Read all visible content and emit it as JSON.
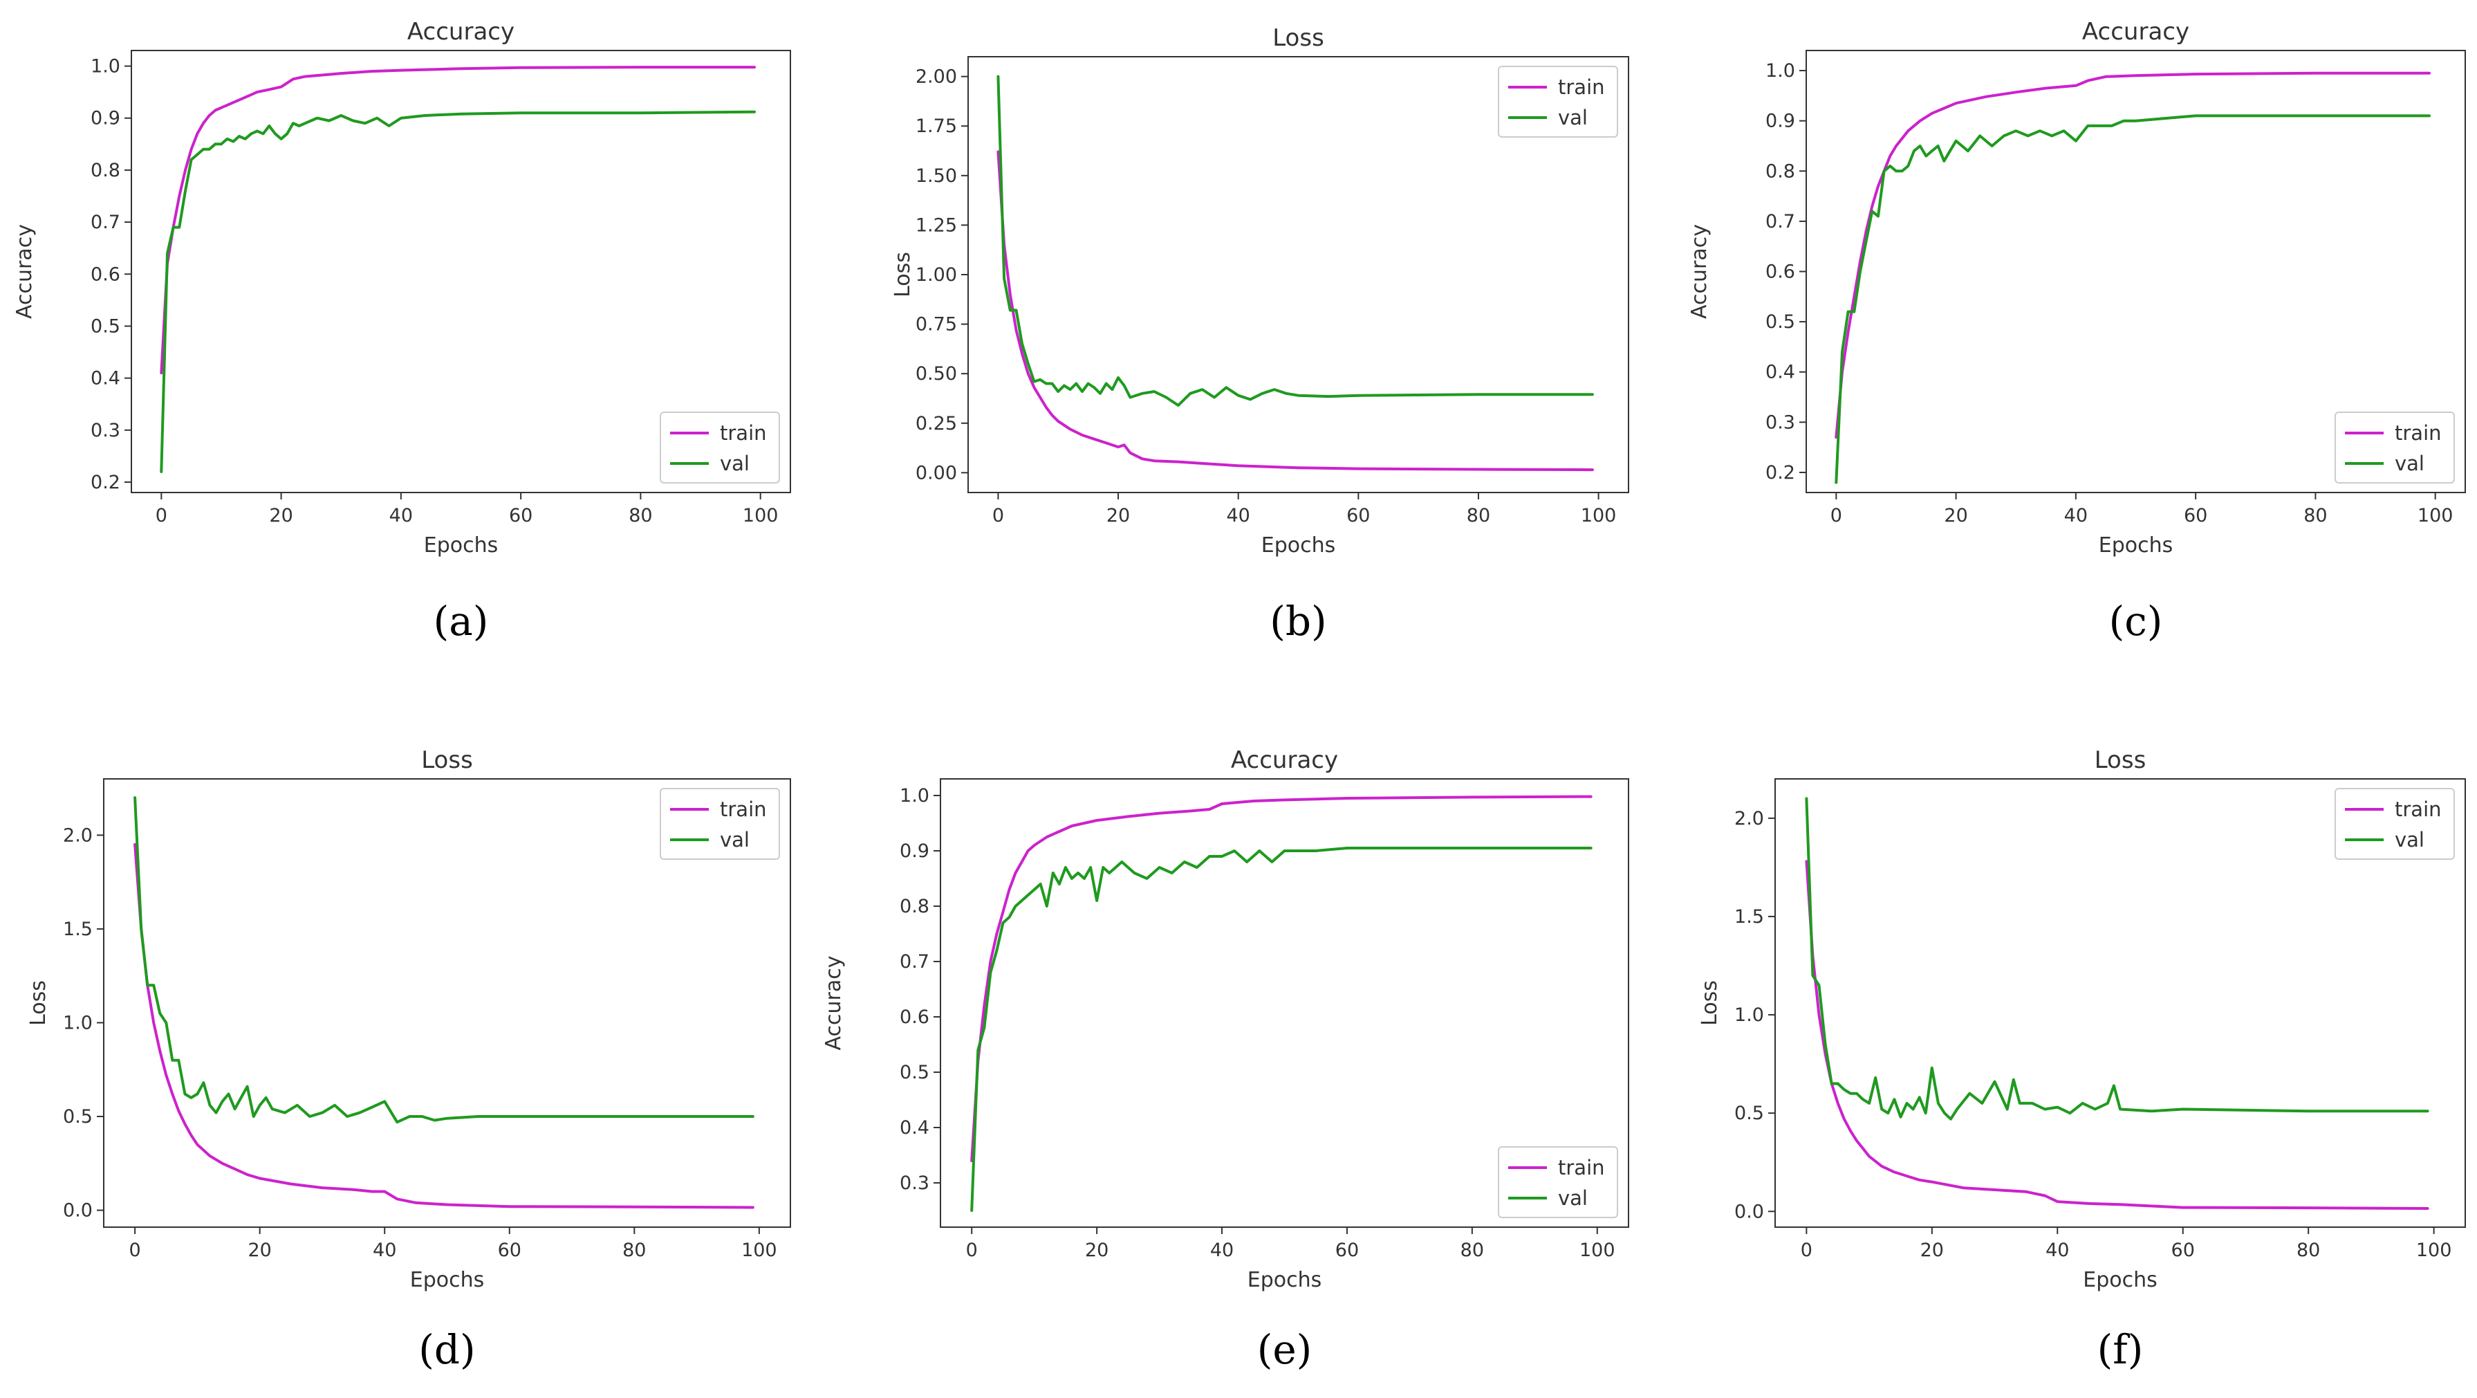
{
  "colors": {
    "train": "#cc22cc",
    "val": "#1f9a1f",
    "axis": "#333333"
  },
  "chart_data": [
    {
      "type": "line",
      "panel": "a",
      "caption": "(a)",
      "title": "Accuracy",
      "xlabel": "Epochs",
      "ylabel": "Accuracy",
      "xlim": [
        -5,
        105
      ],
      "ylim": [
        0.18,
        1.03
      ],
      "xticks": [
        0,
        20,
        40,
        60,
        80,
        100
      ],
      "yticks": [
        0.2,
        0.3,
        0.4,
        0.5,
        0.6,
        0.7,
        0.8,
        0.9,
        1.0
      ],
      "ytick_labels": [
        "0.2",
        "0.3",
        "0.4",
        "0.5",
        "0.6",
        "0.7",
        "0.8",
        "0.9",
        "1.0"
      ],
      "legend": "bottom-right",
      "series": [
        {
          "name": "train",
          "x": [
            0,
            1,
            2,
            3,
            4,
            5,
            6,
            7,
            8,
            9,
            10,
            12,
            14,
            16,
            18,
            20,
            22,
            24,
            26,
            30,
            35,
            40,
            50,
            60,
            80,
            99
          ],
          "y": [
            0.41,
            0.62,
            0.69,
            0.75,
            0.8,
            0.84,
            0.87,
            0.89,
            0.905,
            0.915,
            0.92,
            0.93,
            0.94,
            0.95,
            0.955,
            0.96,
            0.975,
            0.98,
            0.982,
            0.986,
            0.99,
            0.992,
            0.995,
            0.997,
            0.998,
            0.998
          ]
        },
        {
          "name": "val",
          "x": [
            0,
            1,
            2,
            3,
            4,
            5,
            6,
            7,
            8,
            9,
            10,
            11,
            12,
            13,
            14,
            15,
            16,
            17,
            18,
            19,
            20,
            21,
            22,
            23,
            24,
            25,
            26,
            28,
            30,
            32,
            34,
            36,
            38,
            40,
            44,
            50,
            60,
            80,
            99
          ],
          "y": [
            0.22,
            0.64,
            0.69,
            0.69,
            0.76,
            0.82,
            0.83,
            0.84,
            0.84,
            0.85,
            0.85,
            0.86,
            0.855,
            0.865,
            0.86,
            0.87,
            0.875,
            0.87,
            0.885,
            0.87,
            0.86,
            0.87,
            0.89,
            0.885,
            0.89,
            0.895,
            0.9,
            0.895,
            0.905,
            0.895,
            0.89,
            0.9,
            0.885,
            0.9,
            0.905,
            0.908,
            0.91,
            0.91,
            0.912
          ]
        }
      ]
    },
    {
      "type": "line",
      "panel": "b",
      "caption": "(b)",
      "title": "Loss",
      "xlabel": "Epochs",
      "ylabel": "Loss",
      "xlim": [
        -5,
        105
      ],
      "ylim": [
        -0.1,
        2.1
      ],
      "xticks": [
        0,
        20,
        40,
        60,
        80,
        100
      ],
      "yticks": [
        0,
        0.25,
        0.5,
        0.75,
        1.0,
        1.25,
        1.5,
        1.75,
        2.0
      ],
      "ytick_labels": [
        "0.00",
        "0.25",
        "0.50",
        "0.75",
        "1.00",
        "1.25",
        "1.50",
        "1.75",
        "2.00"
      ],
      "legend": "top-right",
      "series": [
        {
          "name": "train",
          "x": [
            0,
            1,
            2,
            3,
            4,
            5,
            6,
            7,
            8,
            9,
            10,
            12,
            14,
            16,
            18,
            20,
            21,
            22,
            24,
            26,
            30,
            35,
            40,
            45,
            50,
            60,
            80,
            99
          ],
          "y": [
            1.62,
            1.15,
            0.9,
            0.72,
            0.6,
            0.5,
            0.43,
            0.38,
            0.33,
            0.29,
            0.26,
            0.22,
            0.19,
            0.17,
            0.15,
            0.13,
            0.14,
            0.1,
            0.07,
            0.06,
            0.055,
            0.045,
            0.035,
            0.03,
            0.025,
            0.02,
            0.017,
            0.015
          ]
        },
        {
          "name": "val",
          "x": [
            0,
            1,
            2,
            3,
            4,
            5,
            6,
            7,
            8,
            9,
            10,
            11,
            12,
            13,
            14,
            15,
            16,
            17,
            18,
            19,
            20,
            21,
            22,
            24,
            26,
            28,
            30,
            32,
            34,
            36,
            38,
            40,
            42,
            44,
            46,
            48,
            50,
            55,
            60,
            80,
            99
          ],
          "y": [
            2.0,
            0.98,
            0.82,
            0.82,
            0.65,
            0.55,
            0.46,
            0.47,
            0.45,
            0.45,
            0.41,
            0.44,
            0.42,
            0.45,
            0.41,
            0.45,
            0.43,
            0.4,
            0.45,
            0.42,
            0.48,
            0.44,
            0.38,
            0.4,
            0.41,
            0.38,
            0.34,
            0.4,
            0.42,
            0.38,
            0.43,
            0.39,
            0.37,
            0.4,
            0.42,
            0.4,
            0.39,
            0.385,
            0.39,
            0.395,
            0.395
          ]
        }
      ]
    },
    {
      "type": "line",
      "panel": "c",
      "caption": "(c)",
      "title": "Accuracy",
      "xlabel": "Epochs",
      "ylabel": "Accuracy",
      "xlim": [
        -5,
        105
      ],
      "ylim": [
        0.16,
        1.04
      ],
      "xticks": [
        0,
        20,
        40,
        60,
        80,
        100
      ],
      "yticks": [
        0.2,
        0.3,
        0.4,
        0.5,
        0.6,
        0.7,
        0.8,
        0.9,
        1.0
      ],
      "ytick_labels": [
        "0.2",
        "0.3",
        "0.4",
        "0.5",
        "0.6",
        "0.7",
        "0.8",
        "0.9",
        "1.0"
      ],
      "legend": "bottom-right",
      "series": [
        {
          "name": "train",
          "x": [
            0,
            1,
            2,
            3,
            4,
            5,
            6,
            7,
            8,
            9,
            10,
            12,
            14,
            16,
            18,
            20,
            25,
            30,
            35,
            38,
            40,
            42,
            45,
            50,
            60,
            80,
            99
          ],
          "y": [
            0.27,
            0.4,
            0.48,
            0.55,
            0.62,
            0.68,
            0.73,
            0.77,
            0.8,
            0.83,
            0.85,
            0.88,
            0.9,
            0.915,
            0.925,
            0.935,
            0.948,
            0.957,
            0.965,
            0.968,
            0.97,
            0.98,
            0.988,
            0.99,
            0.993,
            0.995,
            0.995
          ]
        },
        {
          "name": "val",
          "x": [
            0,
            1,
            2,
            3,
            4,
            5,
            6,
            7,
            8,
            9,
            10,
            11,
            12,
            13,
            14,
            15,
            16,
            17,
            18,
            19,
            20,
            21,
            22,
            24,
            26,
            28,
            30,
            32,
            34,
            36,
            38,
            40,
            42,
            44,
            46,
            48,
            50,
            55,
            60,
            80,
            99
          ],
          "y": [
            0.18,
            0.44,
            0.52,
            0.52,
            0.6,
            0.66,
            0.72,
            0.71,
            0.8,
            0.81,
            0.8,
            0.8,
            0.81,
            0.84,
            0.85,
            0.83,
            0.84,
            0.85,
            0.82,
            0.84,
            0.86,
            0.85,
            0.84,
            0.87,
            0.85,
            0.87,
            0.88,
            0.87,
            0.88,
            0.87,
            0.88,
            0.86,
            0.89,
            0.89,
            0.89,
            0.9,
            0.9,
            0.905,
            0.91,
            0.91,
            0.91
          ]
        }
      ]
    },
    {
      "type": "line",
      "panel": "d",
      "caption": "(d)",
      "title": "Loss",
      "xlabel": "Epochs",
      "ylabel": "Loss",
      "xlim": [
        -5,
        105
      ],
      "ylim": [
        -0.09,
        2.3
      ],
      "xticks": [
        0,
        20,
        40,
        60,
        80,
        100
      ],
      "yticks": [
        0,
        0.5,
        1.0,
        1.5,
        2.0
      ],
      "ytick_labels": [
        "0.0",
        "0.5",
        "1.0",
        "1.5",
        "2.0"
      ],
      "legend": "top-right",
      "series": [
        {
          "name": "train",
          "x": [
            0,
            1,
            2,
            3,
            4,
            5,
            6,
            7,
            8,
            9,
            10,
            12,
            14,
            16,
            18,
            20,
            25,
            30,
            35,
            38,
            40,
            42,
            45,
            50,
            60,
            80,
            99
          ],
          "y": [
            1.95,
            1.5,
            1.2,
            1.0,
            0.85,
            0.72,
            0.62,
            0.53,
            0.46,
            0.4,
            0.35,
            0.29,
            0.25,
            0.22,
            0.19,
            0.17,
            0.14,
            0.12,
            0.11,
            0.1,
            0.1,
            0.06,
            0.04,
            0.03,
            0.02,
            0.018,
            0.015
          ]
        },
        {
          "name": "val",
          "x": [
            0,
            1,
            2,
            3,
            4,
            5,
            6,
            7,
            8,
            9,
            10,
            11,
            12,
            13,
            14,
            15,
            16,
            17,
            18,
            19,
            20,
            21,
            22,
            24,
            26,
            28,
            30,
            32,
            34,
            36,
            38,
            40,
            42,
            44,
            46,
            48,
            50,
            55,
            60,
            80,
            99
          ],
          "y": [
            2.2,
            1.5,
            1.2,
            1.2,
            1.05,
            1.0,
            0.8,
            0.8,
            0.62,
            0.6,
            0.62,
            0.68,
            0.56,
            0.52,
            0.58,
            0.62,
            0.54,
            0.6,
            0.66,
            0.5,
            0.56,
            0.6,
            0.54,
            0.52,
            0.56,
            0.5,
            0.52,
            0.56,
            0.5,
            0.52,
            0.55,
            0.58,
            0.47,
            0.5,
            0.5,
            0.48,
            0.49,
            0.5,
            0.5,
            0.5,
            0.5
          ]
        }
      ]
    },
    {
      "type": "line",
      "panel": "e",
      "caption": "(e)",
      "title": "Accuracy",
      "xlabel": "Epochs",
      "ylabel": "Accuracy",
      "xlim": [
        -5,
        105
      ],
      "ylim": [
        0.22,
        1.03
      ],
      "xticks": [
        0,
        20,
        40,
        60,
        80,
        100
      ],
      "yticks": [
        0.3,
        0.4,
        0.5,
        0.6,
        0.7,
        0.8,
        0.9,
        1.0
      ],
      "ytick_labels": [
        "0.3",
        "0.4",
        "0.5",
        "0.6",
        "0.7",
        "0.8",
        "0.9",
        "1.0"
      ],
      "legend": "bottom-right",
      "series": [
        {
          "name": "train",
          "x": [
            0,
            1,
            2,
            3,
            4,
            5,
            6,
            7,
            8,
            9,
            10,
            12,
            14,
            16,
            18,
            20,
            25,
            30,
            35,
            38,
            40,
            45,
            50,
            60,
            80,
            99
          ],
          "y": [
            0.34,
            0.52,
            0.62,
            0.7,
            0.75,
            0.79,
            0.83,
            0.86,
            0.88,
            0.9,
            0.91,
            0.925,
            0.935,
            0.945,
            0.95,
            0.955,
            0.962,
            0.968,
            0.972,
            0.975,
            0.985,
            0.99,
            0.992,
            0.995,
            0.997,
            0.998
          ]
        },
        {
          "name": "val",
          "x": [
            0,
            1,
            2,
            3,
            4,
            5,
            6,
            7,
            8,
            9,
            10,
            11,
            12,
            13,
            14,
            15,
            16,
            17,
            18,
            19,
            20,
            21,
            22,
            24,
            26,
            28,
            30,
            32,
            34,
            36,
            38,
            40,
            42,
            44,
            46,
            48,
            50,
            55,
            60,
            80,
            99
          ],
          "y": [
            0.25,
            0.54,
            0.58,
            0.68,
            0.72,
            0.77,
            0.78,
            0.8,
            0.81,
            0.82,
            0.83,
            0.84,
            0.8,
            0.86,
            0.84,
            0.87,
            0.85,
            0.86,
            0.85,
            0.87,
            0.81,
            0.87,
            0.86,
            0.88,
            0.86,
            0.85,
            0.87,
            0.86,
            0.88,
            0.87,
            0.89,
            0.89,
            0.9,
            0.88,
            0.9,
            0.88,
            0.9,
            0.9,
            0.905,
            0.905,
            0.905
          ]
        }
      ]
    },
    {
      "type": "line",
      "panel": "f",
      "caption": "(f)",
      "title": "Loss",
      "xlabel": "Epochs",
      "ylabel": "Loss",
      "xlim": [
        -5,
        105
      ],
      "ylim": [
        -0.08,
        2.2
      ],
      "xticks": [
        0,
        20,
        40,
        60,
        80,
        100
      ],
      "yticks": [
        0,
        0.5,
        1.0,
        1.5,
        2.0
      ],
      "ytick_labels": [
        "0.0",
        "0.5",
        "1.0",
        "1.5",
        "2.0"
      ],
      "legend": "top-right",
      "series": [
        {
          "name": "train",
          "x": [
            0,
            1,
            2,
            3,
            4,
            5,
            6,
            7,
            8,
            9,
            10,
            12,
            14,
            16,
            18,
            20,
            25,
            30,
            35,
            38,
            40,
            45,
            50,
            60,
            80,
            99
          ],
          "y": [
            1.78,
            1.3,
            1.0,
            0.8,
            0.65,
            0.55,
            0.47,
            0.41,
            0.36,
            0.32,
            0.28,
            0.23,
            0.2,
            0.18,
            0.16,
            0.15,
            0.12,
            0.11,
            0.1,
            0.08,
            0.05,
            0.04,
            0.035,
            0.02,
            0.018,
            0.015
          ]
        },
        {
          "name": "val",
          "x": [
            0,
            1,
            2,
            3,
            4,
            5,
            6,
            7,
            8,
            9,
            10,
            11,
            12,
            13,
            14,
            15,
            16,
            17,
            18,
            19,
            20,
            21,
            22,
            23,
            24,
            26,
            28,
            30,
            32,
            33,
            34,
            36,
            38,
            40,
            42,
            44,
            46,
            48,
            49,
            50,
            55,
            60,
            80,
            99
          ],
          "y": [
            2.1,
            1.2,
            1.15,
            0.85,
            0.65,
            0.65,
            0.62,
            0.6,
            0.6,
            0.57,
            0.55,
            0.68,
            0.52,
            0.5,
            0.57,
            0.48,
            0.55,
            0.52,
            0.58,
            0.5,
            0.73,
            0.55,
            0.5,
            0.47,
            0.52,
            0.6,
            0.55,
            0.66,
            0.52,
            0.67,
            0.55,
            0.55,
            0.52,
            0.53,
            0.5,
            0.55,
            0.52,
            0.55,
            0.64,
            0.52,
            0.51,
            0.52,
            0.51,
            0.51
          ]
        }
      ]
    }
  ]
}
